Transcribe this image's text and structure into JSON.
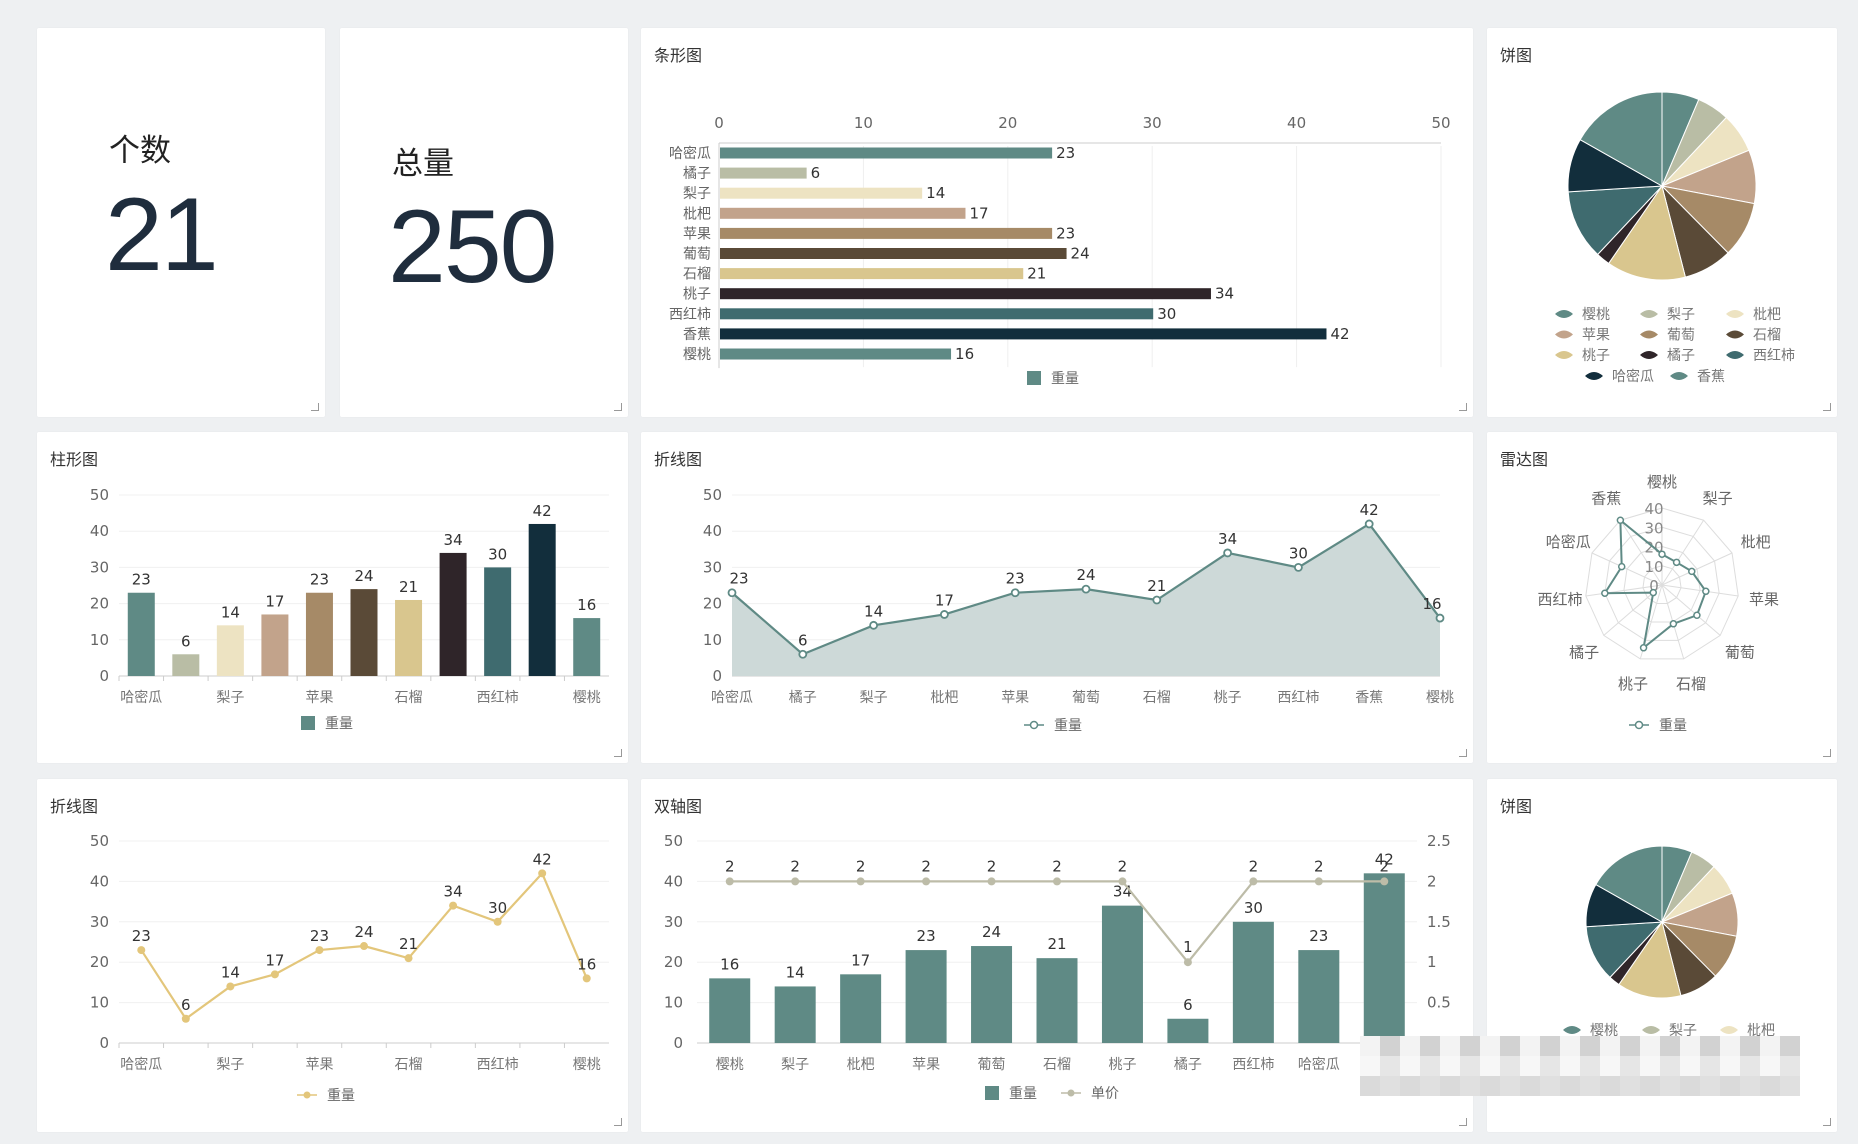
{
  "kpis": [
    {
      "label": "个数",
      "value": "21"
    },
    {
      "label": "总量",
      "value": "250"
    }
  ],
  "legend": {
    "weight": "重量",
    "price": "单价"
  },
  "colors": {
    "palette": [
      "#5f8a85",
      "#b9bda5",
      "#ede3c2",
      "#c2a38b",
      "#a68a67",
      "#5a4a37",
      "#d9c68e",
      "#2f2529",
      "#3f6b6f",
      "#122e3c",
      "#5f8a85"
    ],
    "primary": "#5f8a85",
    "area_fill": "#cdd9d8",
    "yellow": "#e3c67b",
    "price_line": "#bdbca8"
  },
  "chart_data": [
    {
      "id": "hbar",
      "type": "bar",
      "orientation": "horizontal",
      "title": "条形图",
      "categories": [
        "哈密瓜",
        "橘子",
        "梨子",
        "枇杷",
        "苹果",
        "葡萄",
        "石榴",
        "桃子",
        "西红柿",
        "香蕉",
        "樱桃"
      ],
      "values": [
        23,
        6,
        14,
        17,
        23,
        24,
        21,
        34,
        30,
        42,
        16
      ],
      "xlim": [
        0,
        50
      ],
      "xticks": [
        "0",
        "10",
        "20",
        "30",
        "40",
        "50"
      ],
      "series_name": "重量",
      "legend_position": "bottom"
    },
    {
      "id": "pie1",
      "type": "pie",
      "title": "饼图",
      "categories": [
        "樱桃",
        "梨子",
        "枇杷",
        "苹果",
        "葡萄",
        "石榴",
        "桃子",
        "橘子",
        "西红柿",
        "哈密瓜",
        "香蕉"
      ],
      "values": [
        16,
        14,
        17,
        23,
        24,
        21,
        34,
        6,
        30,
        23,
        42
      ],
      "colors": [
        "#5f8a85",
        "#b9bda5",
        "#ede3c2",
        "#c2a38b",
        "#a68a67",
        "#5a4a37",
        "#d9c68e",
        "#2f2529",
        "#3f6b6f",
        "#122e3c",
        "#5f8a85"
      ],
      "legend_position": "bottom"
    },
    {
      "id": "vbar",
      "type": "bar",
      "orientation": "vertical",
      "title": "柱形图",
      "categories": [
        "哈密瓜",
        "橘子",
        "梨子",
        "枇杷",
        "苹果",
        "葡萄",
        "石榴",
        "桃子",
        "西红柿",
        "香蕉",
        "樱桃"
      ],
      "values": [
        23,
        6,
        14,
        17,
        23,
        24,
        21,
        34,
        30,
        42,
        16
      ],
      "shown_xlabels": [
        "哈密瓜",
        "",
        "梨子",
        "",
        "苹果",
        "",
        "石榴",
        "",
        "西红柿",
        "",
        "樱桃"
      ],
      "ylim": [
        0,
        50
      ],
      "yticks": [
        "0",
        "10",
        "20",
        "30",
        "40",
        "50"
      ],
      "series_name": "重量",
      "legend_position": "bottom"
    },
    {
      "id": "area",
      "type": "area",
      "title": "折线图",
      "categories": [
        "哈密瓜",
        "橘子",
        "梨子",
        "枇杷",
        "苹果",
        "葡萄",
        "石榴",
        "桃子",
        "西红柿",
        "香蕉",
        "樱桃"
      ],
      "values": [
        23,
        6,
        14,
        17,
        23,
        24,
        21,
        34,
        30,
        42,
        16
      ],
      "ylim": [
        0,
        50
      ],
      "yticks": [
        "0",
        "10",
        "20",
        "30",
        "40",
        "50"
      ],
      "series_name": "重量",
      "legend_position": "bottom"
    },
    {
      "id": "radar",
      "type": "radar",
      "title": "雷达图",
      "categories": [
        "樱桃",
        "梨子",
        "枇杷",
        "苹果",
        "葡萄",
        "石榴",
        "桃子",
        "橘子",
        "西红柿",
        "哈密瓜",
        "香蕉"
      ],
      "values": [
        16,
        14,
        17,
        23,
        24,
        21,
        34,
        6,
        30,
        23,
        42
      ],
      "rlim": [
        0,
        40
      ],
      "rticks": [
        "0",
        "10",
        "20",
        "30",
        "40"
      ],
      "series_name": "重量",
      "legend_position": "bottom"
    },
    {
      "id": "line",
      "type": "line",
      "title": "折线图",
      "categories": [
        "哈密瓜",
        "橘子",
        "梨子",
        "枇杷",
        "苹果",
        "葡萄",
        "石榴",
        "桃子",
        "西红柿",
        "香蕉",
        "樱桃"
      ],
      "values": [
        23,
        6,
        14,
        17,
        23,
        24,
        21,
        34,
        30,
        42,
        16
      ],
      "shown_xlabels": [
        "哈密瓜",
        "",
        "梨子",
        "",
        "苹果",
        "",
        "石榴",
        "",
        "西红柿",
        "",
        "樱桃"
      ],
      "ylim": [
        0,
        50
      ],
      "yticks": [
        "0",
        "10",
        "20",
        "30",
        "40",
        "50"
      ],
      "series_name": "重量",
      "legend_position": "bottom"
    },
    {
      "id": "dual",
      "type": "bar+line",
      "title": "双轴图",
      "categories": [
        "樱桃",
        "梨子",
        "枇杷",
        "苹果",
        "葡萄",
        "石榴",
        "桃子",
        "橘子",
        "西红柿",
        "哈密瓜",
        "香蕉"
      ],
      "shown_xlabels": [
        "樱桃",
        "梨子",
        "枇杷",
        "苹果",
        "葡萄",
        "石榴",
        "桃子",
        "橘子",
        "西红柿",
        "哈密瓜",
        ""
      ],
      "series": [
        {
          "name": "重量",
          "type": "bar",
          "values": [
            16,
            14,
            17,
            23,
            24,
            21,
            34,
            6,
            30,
            23,
            42
          ]
        },
        {
          "name": "单价",
          "type": "line",
          "values": [
            2,
            2,
            2,
            2,
            2,
            2,
            2,
            1,
            2,
            2,
            2
          ]
        }
      ],
      "ylim_left": [
        0,
        50
      ],
      "yticks_left": [
        "0",
        "10",
        "20",
        "30",
        "40",
        "50"
      ],
      "ylim_right": [
        0,
        2.5
      ],
      "yticks_right": [
        "0",
        "0.5",
        "1",
        "1.5",
        "2",
        "2.5"
      ],
      "legend_position": "bottom"
    },
    {
      "id": "pie2",
      "type": "pie",
      "title": "饼图",
      "categories": [
        "樱桃",
        "梨子",
        "枇杷",
        "苹果",
        "葡萄",
        "石榴",
        "桃子",
        "橘子",
        "西红柿",
        "哈密瓜",
        "香蕉"
      ],
      "values": [
        16,
        14,
        17,
        23,
        24,
        21,
        34,
        6,
        30,
        23,
        42
      ],
      "colors": [
        "#5f8a85",
        "#b9bda5",
        "#ede3c2",
        "#c2a38b",
        "#a68a67",
        "#5a4a37",
        "#d9c68e",
        "#2f2529",
        "#3f6b6f",
        "#122e3c",
        "#5f8a85"
      ],
      "legend_visible": [
        "樱桃",
        "梨子",
        "枇杷"
      ],
      "legend_position": "bottom"
    }
  ]
}
